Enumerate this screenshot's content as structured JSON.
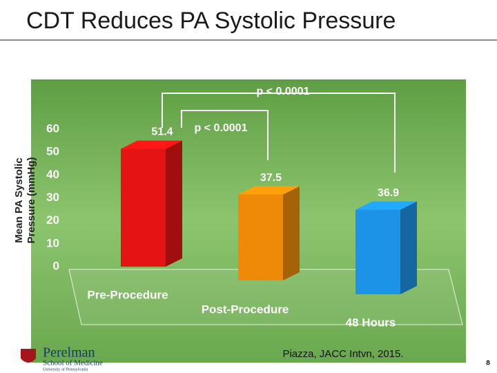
{
  "chart_data": {
    "type": "bar3d",
    "title": "CDT Reduces PA Systolic Pressure",
    "y_label": [
      "Mean PA Systolic",
      "Pressure (mmHg)"
    ],
    "categories": [
      "Pre-Procedure",
      "Post-Procedure",
      "48 Hours"
    ],
    "values": [
      51.4,
      37.5,
      36.9
    ],
    "colors": [
      "#e51414",
      "#ee8a08",
      "#1c93e6"
    ],
    "ylim": [
      0,
      60
    ],
    "yticks": [
      0,
      10,
      20,
      30,
      40,
      50,
      60
    ],
    "grid": false,
    "annotations": [
      "p < 0.0001",
      "p < 0.0001"
    ]
  },
  "footer": {
    "citation": "Piazza, JACC Intvn, 2015.",
    "page_number": "8",
    "logo": [
      "Perelman",
      "School of Medicine",
      "University of Pennsylvania"
    ]
  }
}
